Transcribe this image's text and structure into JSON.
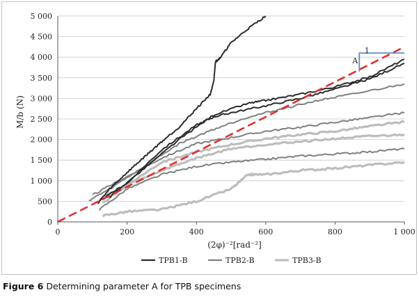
{
  "caption": {
    "label": "Figure 6",
    "text": "Determining parameter A for TPB specimens"
  },
  "chart_data": {
    "type": "line",
    "title": "",
    "xlabel": "(2φ)⁻²[rad⁻²]",
    "ylabel": "M/b (N)",
    "xlim": [
      0,
      1000
    ],
    "ylim": [
      0,
      5000
    ],
    "x_ticks": [
      0,
      200,
      400,
      600,
      800,
      1000
    ],
    "x_tick_labels": [
      "0",
      "200",
      "400",
      "600",
      "800",
      "1 000"
    ],
    "y_ticks": [
      0,
      500,
      1000,
      1500,
      2000,
      2500,
      3000,
      3500,
      4000,
      4500,
      5000
    ],
    "y_tick_labels": [
      "0",
      "500",
      "1 000",
      "1 500",
      "2 000",
      "2 500",
      "3 000",
      "3 500",
      "4 000",
      "4 500",
      "5 000"
    ],
    "grid": "horizontal",
    "legend_position": "bottom",
    "colors": {
      "TPB1-B": "#2b2b2b",
      "TPB2-B": "#7f7f7f",
      "TPB3-B": "#bdbdbd",
      "fit": "#e03030",
      "slope": "#5b8fc8"
    },
    "series": [
      {
        "name": "TPB1-B",
        "curve": 1,
        "x": [
          115,
          150,
          200,
          250,
          300,
          350,
          400,
          440,
          450,
          455,
          460,
          470,
          500,
          550,
          600
        ],
        "y": [
          450,
          800,
          1200,
          1580,
          1950,
          2300,
          2750,
          3100,
          3400,
          3900,
          3920,
          4000,
          4350,
          4700,
          5000
        ]
      },
      {
        "name": "TPB1-B",
        "curve": 2,
        "x": [
          120,
          200,
          300,
          400,
          450,
          500,
          600,
          700,
          800,
          900,
          1000
        ],
        "y": [
          500,
          950,
          1750,
          2350,
          2550,
          2650,
          2820,
          3000,
          3220,
          3470,
          3850
        ]
      },
      {
        "name": "TPB1-B",
        "curve": 3,
        "x": [
          150,
          250,
          350,
          450,
          550,
          600,
          700,
          800,
          900,
          1000
        ],
        "y": [
          600,
          1300,
          2000,
          2600,
          2880,
          2950,
          3100,
          3280,
          3520,
          3950
        ]
      },
      {
        "name": "TPB2-B",
        "curve": 1,
        "x": [
          90,
          150,
          250,
          350,
          450,
          550,
          650,
          750,
          850,
          1000
        ],
        "y": [
          520,
          800,
          1350,
          1900,
          2250,
          2550,
          2750,
          2950,
          3100,
          3350
        ]
      },
      {
        "name": "TPB2-B",
        "curve": 2,
        "x": [
          100,
          200,
          300,
          400,
          500,
          600,
          700,
          800,
          900,
          1000
        ],
        "y": [
          650,
          1100,
          1550,
          1900,
          2050,
          2200,
          2300,
          2420,
          2530,
          2650
        ]
      },
      {
        "name": "TPB2-B",
        "curve": 3,
        "x": [
          120,
          200,
          300,
          400,
          500,
          600,
          700,
          800,
          900,
          1000
        ],
        "y": [
          300,
          800,
          1150,
          1350,
          1450,
          1520,
          1600,
          1650,
          1700,
          1780
        ]
      },
      {
        "name": "TPB3-B",
        "curve": 1,
        "x": [
          120,
          200,
          300,
          400,
          500,
          600,
          700,
          800,
          900,
          1000
        ],
        "y": [
          550,
          900,
          1250,
          1550,
          1780,
          1880,
          1950,
          2020,
          2080,
          2120
        ]
      },
      {
        "name": "TPB3-B",
        "curve": 2,
        "x": [
          130,
          200,
          300,
          400,
          500,
          600,
          700,
          800,
          900,
          1000
        ],
        "y": [
          450,
          900,
          1450,
          1700,
          1880,
          2020,
          2120,
          2200,
          2320,
          2430
        ]
      },
      {
        "name": "TPB3-B",
        "curve": 3,
        "x": [
          130,
          200,
          300,
          400,
          500,
          550,
          600,
          700,
          800,
          900,
          1000
        ],
        "y": [
          150,
          250,
          300,
          500,
          800,
          1150,
          1150,
          1250,
          1300,
          1380,
          1450
        ]
      }
    ],
    "fit_line": {
      "x": [
        0,
        1000
      ],
      "y": [
        0,
        4250
      ]
    },
    "annotations": [
      {
        "text": "1",
        "at_x": 885,
        "at_y": 4100
      },
      {
        "text": "A",
        "at_x": 850,
        "at_y": 3850
      }
    ],
    "slope_marker": {
      "x_from": 870,
      "x_to": 1000,
      "y_from": 3650,
      "y_to": 4100
    },
    "legend": [
      "TPB1-B",
      "TPB2-B",
      "TPB3-B"
    ]
  }
}
